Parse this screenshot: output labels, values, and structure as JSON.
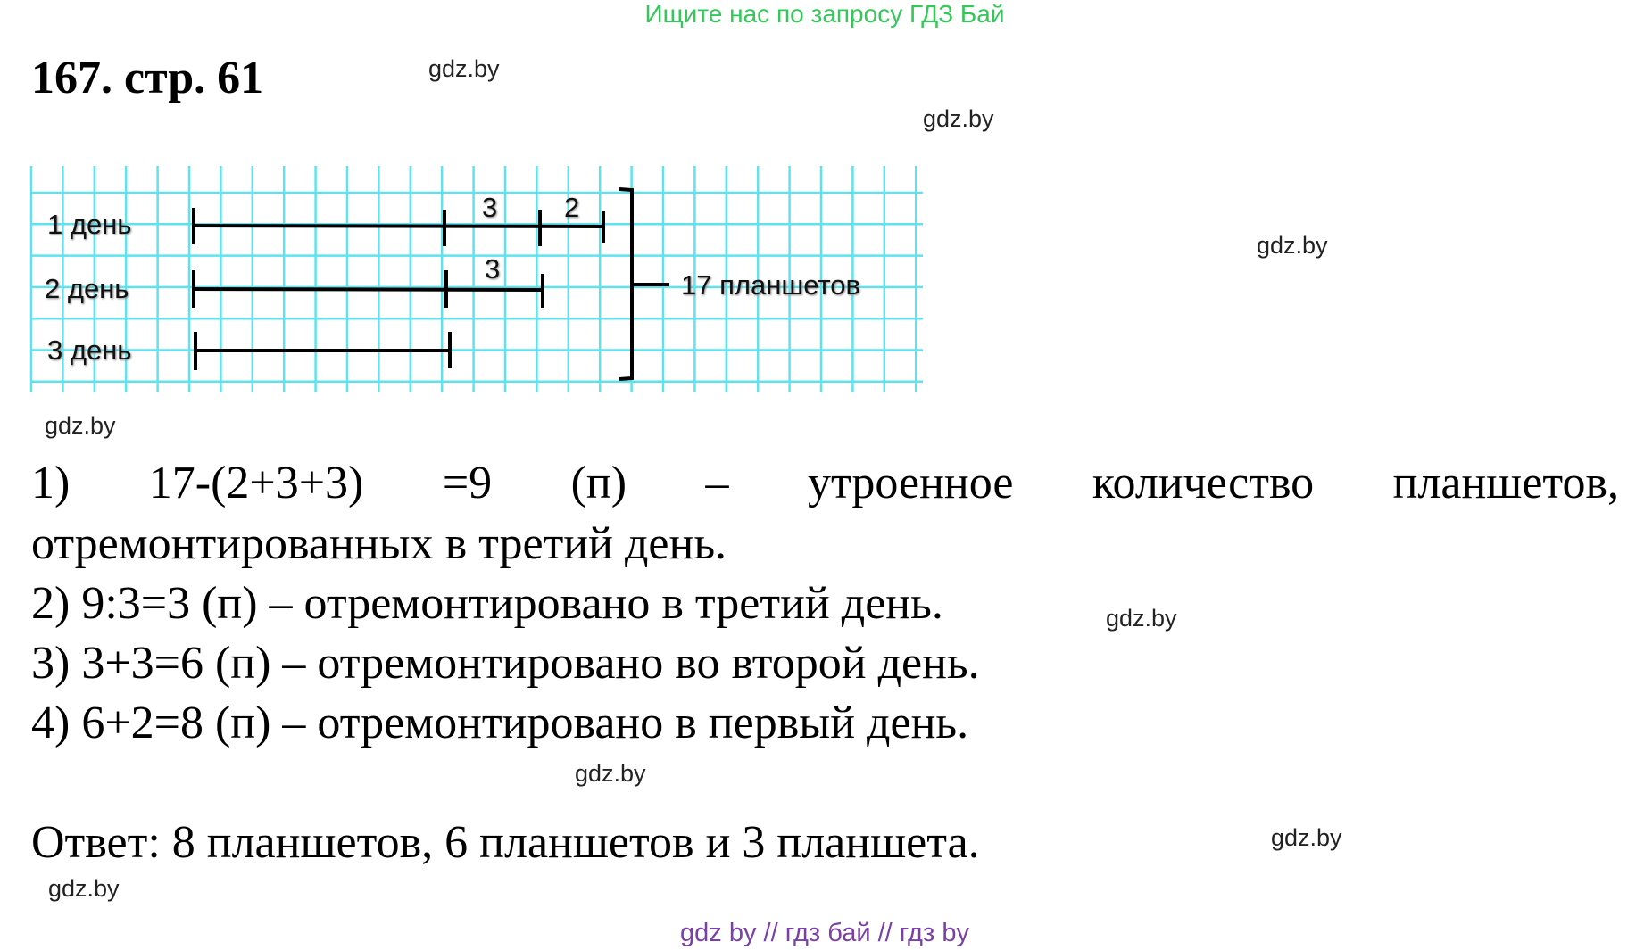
{
  "header_note": "Ищите нас по запросу ГДЗ Бай",
  "title": "167. стр. 61",
  "watermark": "gdz.by",
  "diagram": {
    "rows": [
      {
        "label": "1 день",
        "segments": [
          "3",
          "2"
        ]
      },
      {
        "label": "2 день",
        "segments": [
          "3"
        ]
      },
      {
        "label": "3 день",
        "segments": []
      }
    ],
    "total_label": "17 планшетов",
    "grid_color": "#5ee3ee"
  },
  "solution": {
    "line1": "1) 17-(2+3+3) =9 (п) – утроенное количество планшетов,",
    "line1b": "отремонтированных в третий день.",
    "line2": "2) 9:3=3 (п) – отремонтировано в третий день.",
    "line3": "3) 3+3=6 (п) – отремонтировано во второй день.",
    "line4": "4) 6+2=8 (п) – отремонтировано в первый день.",
    "answer": "Ответ: 8 планшетов, 6 планшетов и 3 планшета."
  },
  "footer": "gdz by  //  гдз бай  //  гдз by"
}
